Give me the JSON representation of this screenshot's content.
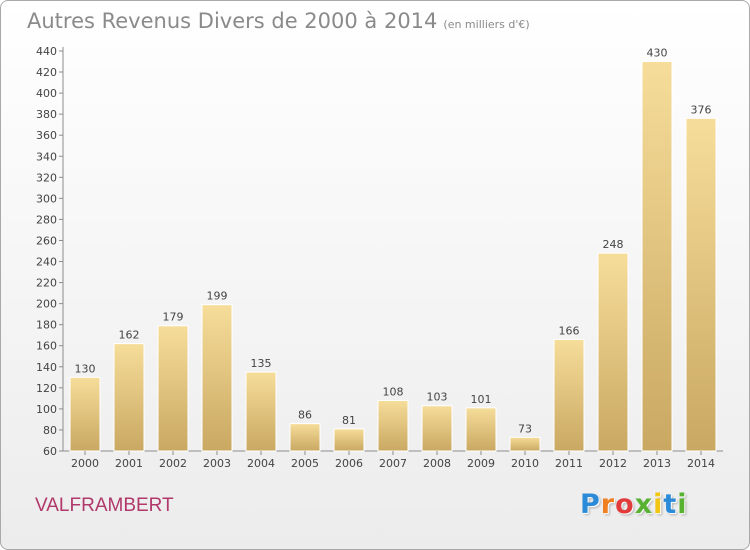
{
  "title": "Autres Revenus Divers de 2000 à 2014",
  "title_unit": "(en milliers d'€)",
  "commune": "VALFRAMBERT",
  "logo": {
    "letters": [
      "P",
      "r",
      "o",
      "x",
      "i",
      "t",
      "i"
    ],
    "colors": [
      "#2b8bd8",
      "#f07f1f",
      "#e23b3b",
      "#58b130",
      "#f2c512",
      "#2b8bd8",
      "#58b130"
    ]
  },
  "colors": {
    "bar": "#e8cd85",
    "title": "#8a8a8a",
    "commune": "#b0386a"
  },
  "chart_data": {
    "type": "bar",
    "title": "Autres Revenus Divers de 2000 à 2014",
    "xlabel": "",
    "ylabel": "",
    "categories": [
      "2000",
      "2001",
      "2002",
      "2003",
      "2004",
      "2005",
      "2006",
      "2007",
      "2008",
      "2009",
      "2010",
      "2011",
      "2012",
      "2013",
      "2014"
    ],
    "values": [
      130,
      162,
      179,
      199,
      135,
      86,
      81,
      108,
      103,
      101,
      73,
      166,
      248,
      430,
      376
    ],
    "ylim": [
      60,
      440
    ],
    "yticks": [
      60,
      80,
      100,
      120,
      140,
      160,
      180,
      200,
      220,
      240,
      260,
      280,
      300,
      320,
      340,
      360,
      380,
      400,
      420,
      440
    ],
    "grid": false,
    "data_labels": true
  }
}
